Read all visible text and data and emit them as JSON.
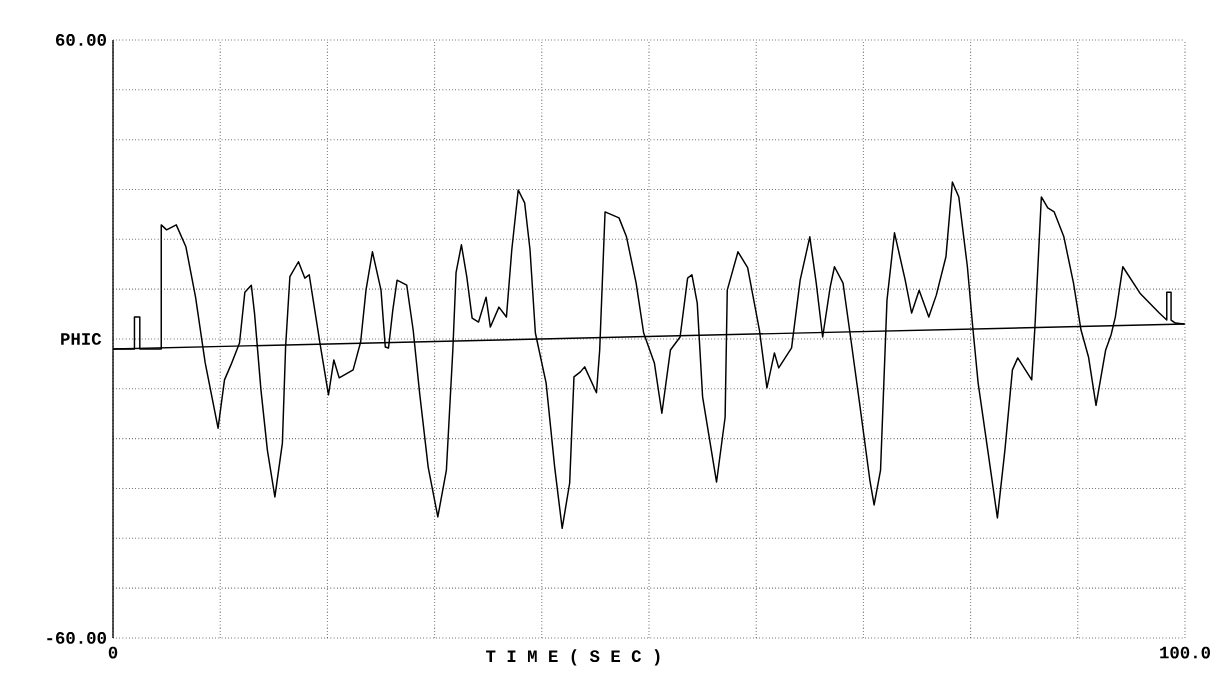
{
  "chart_data": {
    "type": "line",
    "xlabel": "T I M E   ( S E C )",
    "ylabel": "PHIC",
    "xlim": [
      0,
      100
    ],
    "ylim": [
      -60,
      60
    ],
    "xticks": [
      {
        "value": 0,
        "label": "0"
      },
      {
        "value": 10,
        "label": null
      },
      {
        "value": 20,
        "label": null
      },
      {
        "value": 30,
        "label": null
      },
      {
        "value": 40,
        "label": null
      },
      {
        "value": 50,
        "label": null
      },
      {
        "value": 60,
        "label": null
      },
      {
        "value": 70,
        "label": null
      },
      {
        "value": 80,
        "label": null
      },
      {
        "value": 90,
        "label": null
      },
      {
        "value": 100,
        "label": "100.0"
      }
    ],
    "yticks": [
      {
        "value": -60,
        "label": "-60.00"
      },
      {
        "value": -50,
        "label": null
      },
      {
        "value": -40,
        "label": null
      },
      {
        "value": -30,
        "label": null
      },
      {
        "value": -20,
        "label": null
      },
      {
        "value": -10,
        "label": null
      },
      {
        "value": 0,
        "label": null
      },
      {
        "value": 10,
        "label": null
      },
      {
        "value": 20,
        "label": null
      },
      {
        "value": 30,
        "label": null
      },
      {
        "value": 40,
        "label": null
      },
      {
        "value": 50,
        "label": null
      },
      {
        "value": 60,
        "label": "60.00"
      }
    ],
    "grid": true,
    "marker": "none",
    "line_style": "solid",
    "series": [
      {
        "color": "#000000",
        "x": [
          0,
          2.0,
          2.0,
          2.5,
          2.5,
          4.5,
          4.5,
          5.0,
          5.9,
          6.8,
          7.7,
          8.6,
          9.8,
          10.4,
          11.0,
          11.8,
          12.3,
          12.9,
          13.2,
          13.8,
          14.4,
          15.1,
          15.8,
          16.1,
          16.5,
          17.3,
          17.9,
          18.3,
          19.3,
          20.1,
          20.6,
          21.1,
          22.4,
          23.1,
          23.6,
          24.2,
          25.0,
          25.4,
          25.7,
          26.1,
          26.5,
          27.4,
          28.0,
          28.6,
          29.4,
          30.3,
          31.1,
          31.7,
          32.0,
          32.5,
          33.0,
          33.5,
          34.1,
          34.8,
          35.2,
          36.0,
          36.7,
          37.2,
          37.8,
          38.4,
          38.9,
          39.4,
          40.4,
          41.2,
          41.9,
          42.6,
          43.0,
          43.6,
          44.0,
          45.1,
          45.4,
          45.9,
          47.2,
          47.9,
          48.8,
          49.5,
          50.5,
          51.2,
          52.0,
          52.9,
          53.6,
          54.0,
          54.5,
          55.0,
          56.3,
          57.1,
          57.3,
          58.3,
          59.2,
          60.3,
          61.0,
          61.7,
          62.1,
          63.3,
          64.1,
          65.0,
          65.6,
          66.2,
          66.9,
          67.3,
          68.1,
          68.8,
          69.6,
          70.6,
          71.0,
          71.6,
          72.2,
          72.9,
          73.9,
          74.5,
          75.2,
          76.1,
          76.8,
          77.7,
          78.3,
          78.9,
          79.7,
          80.2,
          80.7,
          81.6,
          82.5,
          83.2,
          83.9,
          84.4,
          85.7,
          86.0,
          86.6,
          87.2,
          87.8,
          88.7,
          89.6,
          90.3,
          91.0,
          91.7,
          92.6,
          93.1,
          93.5,
          94.2,
          95.8,
          97.6,
          98.3,
          98.3,
          98.7,
          98.7,
          99.1,
          99.9
        ],
        "values": [
          -2,
          -2,
          4.4,
          4.4,
          -2,
          -2,
          22.9,
          21.9,
          22.9,
          18.5,
          8.4,
          -4.8,
          -17.9,
          -8.2,
          -5.2,
          -0.8,
          9.4,
          10.8,
          5.2,
          -10.2,
          -22.3,
          -31.7,
          -20.9,
          -1.6,
          12.5,
          15.5,
          12.2,
          12.9,
          -0.8,
          -11.2,
          -4.2,
          -7.8,
          -6.2,
          -0.6,
          9.8,
          17.5,
          9.8,
          -1.6,
          -1.8,
          5.8,
          11.8,
          10.8,
          1.8,
          -10.8,
          -25.7,
          -35.7,
          -26.3,
          -2.2,
          13.3,
          18.9,
          12.5,
          4.2,
          3.4,
          8.4,
          2.4,
          6.4,
          4.4,
          17.9,
          29.9,
          27.3,
          17.9,
          1.2,
          -8.8,
          -25.7,
          -38.0,
          -28.9,
          -7.6,
          -6.6,
          -5.6,
          -10.8,
          -2.2,
          25.5,
          24.3,
          20.5,
          11.2,
          1.2,
          -4.8,
          -14.9,
          -2.2,
          0.4,
          12.2,
          12.9,
          7.2,
          -11.6,
          -28.7,
          -15.7,
          9.8,
          17.5,
          14.3,
          1.8,
          -9.8,
          -2.8,
          -5.8,
          -1.8,
          11.8,
          20.5,
          11.2,
          0.4,
          10.4,
          14.5,
          11.2,
          0.4,
          -12.2,
          -28.3,
          -33.3,
          -26.3,
          7.8,
          21.3,
          11.8,
          5.2,
          9.8,
          4.4,
          8.8,
          16.5,
          31.5,
          28.5,
          14.5,
          2.4,
          -8.8,
          -22.3,
          -35.9,
          -22.3,
          -6.2,
          -3.8,
          -8.2,
          2.4,
          28.5,
          26.3,
          25.5,
          20.5,
          11.2,
          1.8,
          -3.6,
          -13.3,
          -2.2,
          0.8,
          4.4,
          14.5,
          9.2,
          5.2,
          3.8,
          9.4,
          9.4,
          3.8,
          3.2,
          3.0
        ]
      },
      {
        "type": "line",
        "color": "#000000",
        "x": [
          0,
          100
        ],
        "values": [
          -2,
          3
        ]
      }
    ]
  }
}
